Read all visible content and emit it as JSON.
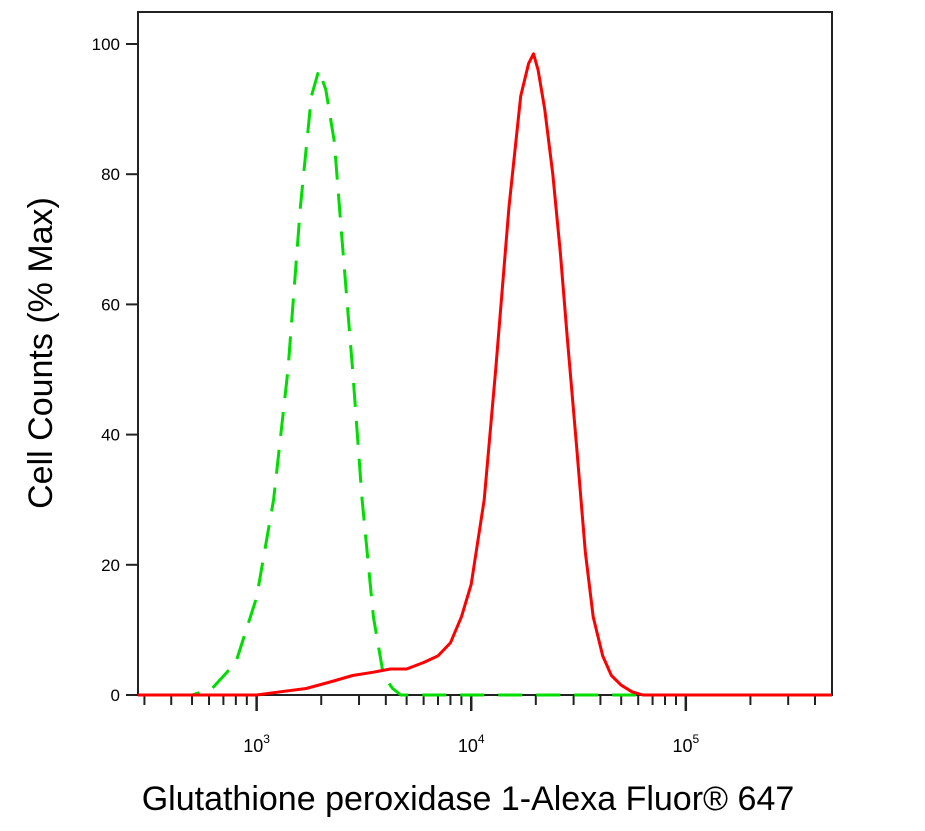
{
  "chart_data": {
    "type": "line",
    "title": "",
    "xlabel": "Glutathione peroxidase 1-Alexa Fluor® 647",
    "ylabel": "Cell Counts (% Max)",
    "x_scale": "log",
    "xlim": [
      280,
      480000
    ],
    "ylim": [
      0,
      100
    ],
    "x_ticks": [
      {
        "value": 1000,
        "base": "10",
        "exp": "3"
      },
      {
        "value": 10000,
        "base": "10",
        "exp": "4"
      },
      {
        "value": 100000,
        "base": "10",
        "exp": "5"
      }
    ],
    "y_ticks": [
      0,
      20,
      40,
      60,
      80,
      100
    ],
    "grid": false,
    "legend": "none",
    "series": [
      {
        "color": "#00dd00",
        "style": "dashed",
        "x": [
          280,
          500,
          620,
          800,
          1000,
          1200,
          1400,
          1600,
          1800,
          1950,
          2100,
          2300,
          2500,
          2800,
          3100,
          3500,
          3900,
          4300,
          4700,
          6000,
          10000,
          20000,
          50000,
          100000,
          480000
        ],
        "y": [
          0,
          0,
          1,
          5,
          15,
          30,
          50,
          75,
          92,
          96,
          93,
          85,
          70,
          50,
          30,
          12,
          3,
          1,
          0,
          0,
          0,
          0,
          0,
          0,
          0
        ]
      },
      {
        "color": "#ff0000",
        "style": "solid",
        "x": [
          280,
          1000,
          1300,
          1700,
          2200,
          2800,
          3500,
          4200,
          5000,
          6000,
          7000,
          8000,
          9000,
          10000,
          11500,
          13000,
          15000,
          17000,
          18500,
          19500,
          20500,
          22000,
          24000,
          26000,
          28000,
          31000,
          34000,
          37000,
          41000,
          45000,
          50000,
          56000,
          63000,
          80000,
          150000,
          480000
        ],
        "y": [
          0,
          0,
          0.5,
          1,
          2,
          3,
          3.5,
          4,
          4,
          5,
          6,
          8,
          12,
          17,
          30,
          50,
          75,
          92,
          97,
          98.5,
          96,
          90,
          80,
          68,
          55,
          38,
          22,
          12,
          6,
          3,
          1.5,
          0.5,
          0,
          0,
          0,
          0
        ]
      }
    ]
  }
}
